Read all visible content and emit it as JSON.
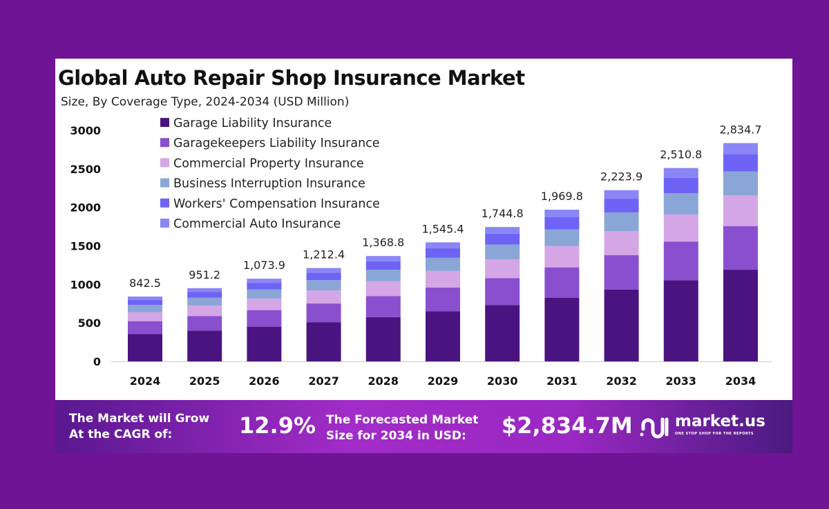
{
  "chart_data": {
    "type": "bar",
    "stacked": true,
    "title": "Global Auto Repair Shop Insurance Market",
    "subtitle": "Size, By Coverage Type, 2024-2034 (USD Million)",
    "categories": [
      "2024",
      "2025",
      "2026",
      "2027",
      "2028",
      "2029",
      "2030",
      "2031",
      "2032",
      "2033",
      "2034"
    ],
    "totals": [
      "842.5",
      "951.2",
      "1,073.9",
      "1,212.4",
      "1,368.8",
      "1,545.4",
      "1,744.8",
      "1,969.8",
      "2,223.9",
      "2,510.8",
      "2,834.7"
    ],
    "ylim": [
      0,
      3000
    ],
    "yticks": [
      "0",
      "500",
      "1000",
      "1500",
      "2000",
      "2500",
      "3000"
    ],
    "grid": false,
    "legend_position": "top-left",
    "series": [
      {
        "name": "Garage Liability Insurance",
        "color": "#4a1480",
        "values": [
          353.9,
          399.5,
          451.0,
          509.2,
          574.9,
          649.1,
          732.8,
          827.3,
          934.0,
          1054.5,
          1190.6
        ]
      },
      {
        "name": "Garagekeepers Liability Insurance",
        "color": "#8a4fcf",
        "values": [
          168.5,
          190.2,
          214.8,
          242.5,
          273.8,
          309.1,
          349.0,
          394.0,
          444.8,
          502.2,
          566.9
        ]
      },
      {
        "name": "Commercial Property Insurance",
        "color": "#d4a6e6",
        "values": [
          118.0,
          133.2,
          150.3,
          169.7,
          191.6,
          216.4,
          244.3,
          275.8,
          311.3,
          351.5,
          396.9
        ]
      },
      {
        "name": "Business Interruption Insurance",
        "color": "#8aa6d6",
        "values": [
          92.7,
          104.6,
          118.1,
          133.4,
          150.6,
          170.0,
          191.9,
          216.7,
          244.6,
          276.2,
          311.8
        ]
      },
      {
        "name": "Workers' Compensation Insurance",
        "color": "#6e63f5",
        "values": [
          67.4,
          76.1,
          85.9,
          97.0,
          109.5,
          123.6,
          139.6,
          157.6,
          177.9,
          200.9,
          226.8
        ]
      },
      {
        "name": "Commercial Auto Insurance",
        "color": "#8a86f5",
        "values": [
          42.1,
          47.6,
          53.7,
          60.6,
          68.4,
          77.3,
          87.2,
          98.5,
          111.2,
          125.5,
          141.7
        ]
      }
    ]
  },
  "footer": {
    "cagr_label_1": "The Market will Grow",
    "cagr_label_2": "At the CAGR of:",
    "cagr_value": "12.9%",
    "forecast_label_1": "The Forecasted Market",
    "forecast_label_2": "Size for 2034 in USD:",
    "forecast_value": "$2,834.7M",
    "logo_text": "market.us",
    "logo_tagline": "ONE STOP SHOP FOR THE REPORTS"
  }
}
